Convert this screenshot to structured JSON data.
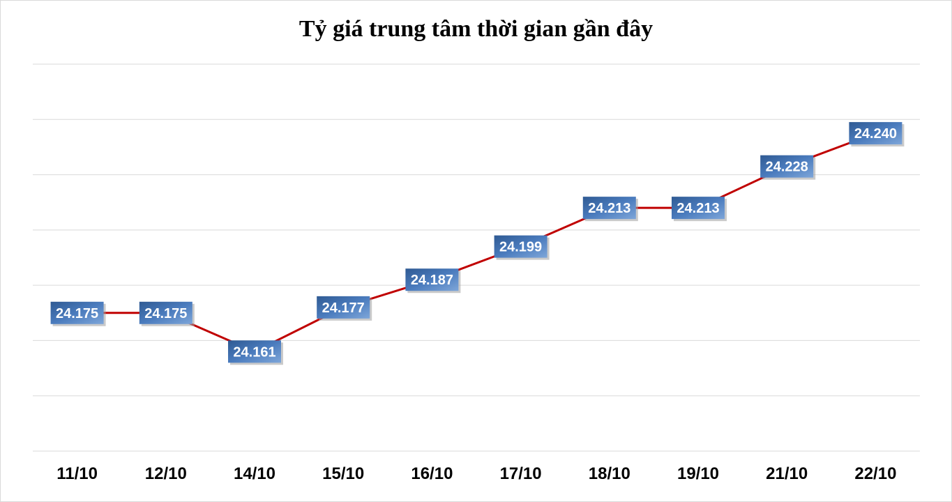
{
  "chart_data": {
    "type": "line",
    "title": "Tỷ giá trung tâm thời gian gần đây",
    "categories": [
      "11/10",
      "12/10",
      "14/10",
      "15/10",
      "16/10",
      "17/10",
      "18/10",
      "19/10",
      "21/10",
      "22/10"
    ],
    "series": [
      {
        "values": [
          24175,
          24175,
          24161,
          24177,
          24187,
          24199,
          24213,
          24213,
          24228,
          24240
        ],
        "labels": [
          "24.175",
          "24.175",
          "24.161",
          "24.177",
          "24.187",
          "24.199",
          "24.213",
          "24.213",
          "24.228",
          "24.240"
        ],
        "color": "#c00000"
      }
    ],
    "ylim": [
      24125,
      24265
    ],
    "grid": true,
    "legend": "none",
    "label_box_color": "#4472c4"
  }
}
